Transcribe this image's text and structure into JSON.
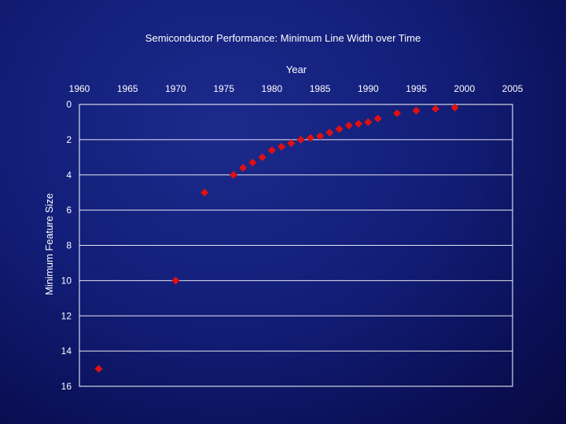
{
  "chart_data": {
    "type": "scatter",
    "title": "Semiconductor Performance: Minimum Line Width over Time",
    "xlabel": "Year",
    "ylabel": "Minimum Feature Size",
    "x_axis_position": "top",
    "y_axis_inverted": true,
    "xlim": [
      1960,
      2005
    ],
    "ylim": [
      0,
      16
    ],
    "x_ticks": [
      1960,
      1965,
      1970,
      1975,
      1980,
      1985,
      1990,
      1995,
      2000,
      2005
    ],
    "y_ticks": [
      0,
      2,
      4,
      6,
      8,
      10,
      12,
      14,
      16
    ],
    "grid": "horizontal",
    "marker": "diamond",
    "colors": {
      "marker": "#e01010",
      "axis": "#ffffff",
      "text": "#ffffff"
    },
    "points": [
      {
        "x": 1962,
        "y": 15
      },
      {
        "x": 1970,
        "y": 10
      },
      {
        "x": 1973,
        "y": 5
      },
      {
        "x": 1976,
        "y": 4
      },
      {
        "x": 1977,
        "y": 3.6
      },
      {
        "x": 1978,
        "y": 3.3
      },
      {
        "x": 1979,
        "y": 3
      },
      {
        "x": 1980,
        "y": 2.6
      },
      {
        "x": 1981,
        "y": 2.4
      },
      {
        "x": 1982,
        "y": 2.2
      },
      {
        "x": 1983,
        "y": 2
      },
      {
        "x": 1984,
        "y": 1.9
      },
      {
        "x": 1985,
        "y": 1.8
      },
      {
        "x": 1986,
        "y": 1.6
      },
      {
        "x": 1987,
        "y": 1.4
      },
      {
        "x": 1988,
        "y": 1.2
      },
      {
        "x": 1989,
        "y": 1.1
      },
      {
        "x": 1990,
        "y": 1
      },
      {
        "x": 1991,
        "y": 0.8
      },
      {
        "x": 1993,
        "y": 0.5
      },
      {
        "x": 1995,
        "y": 0.35
      },
      {
        "x": 1997,
        "y": 0.25
      },
      {
        "x": 1999,
        "y": 0.18
      }
    ]
  }
}
